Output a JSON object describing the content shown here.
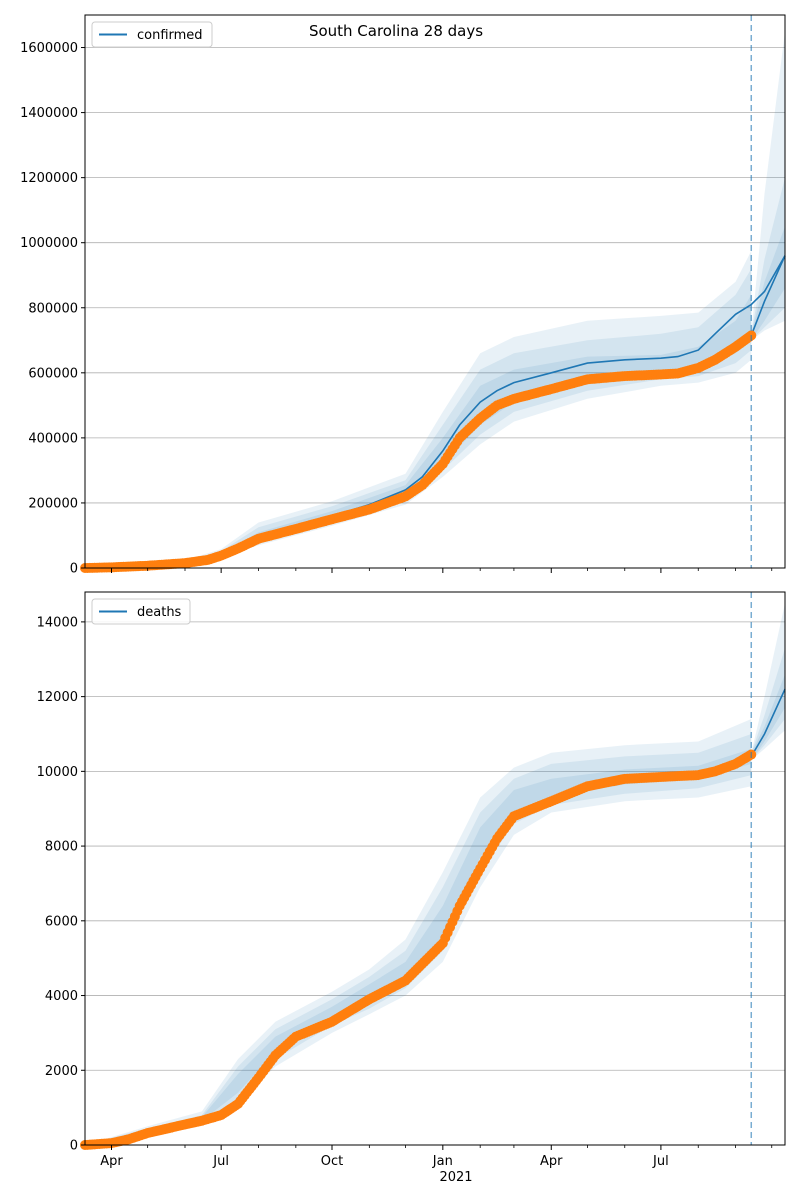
{
  "figure": {
    "title": "South Carolina 28 days"
  },
  "colors": {
    "model": "#1f77b4",
    "observed": "#ff7f0e",
    "band": "#1f77b4",
    "grid": "#b0b0b0",
    "forecast_line": "#1f77b4"
  },
  "x_axis": {
    "range": [
      "2020-03-10",
      "2021-10-12"
    ],
    "major_ticks": [
      {
        "date": "2020-04-01",
        "label": "Apr"
      },
      {
        "date": "2020-07-01",
        "label": "Jul"
      },
      {
        "date": "2020-10-01",
        "label": "Oct"
      },
      {
        "date": "2021-01-01",
        "label": "Jan"
      },
      {
        "date": "2021-04-01",
        "label": "Apr"
      },
      {
        "date": "2021-07-01",
        "label": "Jul"
      }
    ],
    "year_label": {
      "date": "2021-01-01",
      "label": "2021"
    },
    "minor_ticks": [
      "2020-05-01",
      "2020-06-01",
      "2020-08-01",
      "2020-09-01",
      "2020-11-01",
      "2020-12-01",
      "2021-02-01",
      "2021-03-01",
      "2021-05-01",
      "2021-06-01",
      "2021-08-01",
      "2021-09-01",
      "2021-10-01"
    ],
    "forecast_start": "2021-09-14"
  },
  "chart_data": [
    {
      "type": "line",
      "legend": "confirmed",
      "legend_position": "upper left",
      "grid_y": true,
      "ylim": [
        0,
        1700000
      ],
      "yticks": [
        0,
        200000,
        400000,
        600000,
        800000,
        1000000,
        1200000,
        1400000,
        1600000
      ],
      "model": {
        "x": [
          "2020-03-10",
          "2020-04-01",
          "2020-05-01",
          "2020-06-01",
          "2020-06-20",
          "2020-07-01",
          "2020-07-15",
          "2020-08-01",
          "2020-09-01",
          "2020-10-01",
          "2020-11-01",
          "2020-12-01",
          "2020-12-15",
          "2021-01-01",
          "2021-01-15",
          "2021-02-01",
          "2021-02-15",
          "2021-03-01",
          "2021-04-01",
          "2021-05-01",
          "2021-06-01",
          "2021-07-01",
          "2021-07-15",
          "2021-08-01",
          "2021-08-15",
          "2021-09-01",
          "2021-09-14",
          "2021-09-25",
          "2021-10-12"
        ],
        "y": [
          0,
          3000,
          8000,
          17000,
          30000,
          42000,
          65000,
          95000,
          125000,
          160000,
          195000,
          240000,
          280000,
          360000,
          440000,
          510000,
          545000,
          570000,
          600000,
          630000,
          640000,
          645000,
          650000,
          670000,
          720000,
          780000,
          810000,
          850000,
          960000
        ],
        "y_note": "model mean segment after forecast start continues from observed end",
        "forecast_y": {
          "x": [
            "2021-09-14",
            "2021-09-25",
            "2021-10-12"
          ],
          "y": [
            715000,
            820000,
            960000
          ]
        }
      },
      "bands": [
        {
          "x": [
            "2020-03-10",
            "2020-06-01",
            "2020-07-01",
            "2020-08-01",
            "2020-10-01",
            "2020-12-01",
            "2021-01-01",
            "2021-02-01",
            "2021-03-01",
            "2021-05-01",
            "2021-07-01",
            "2021-08-01",
            "2021-09-01",
            "2021-09-14"
          ],
          "lower": [
            0,
            15000,
            38000,
            85000,
            145000,
            215000,
            320000,
            440000,
            510000,
            570000,
            600000,
            610000,
            660000,
            700000
          ],
          "upper": [
            0,
            19000,
            46000,
            110000,
            175000,
            255000,
            400000,
            560000,
            610000,
            650000,
            655000,
            680000,
            760000,
            840000
          ]
        },
        {
          "x": [
            "2020-03-10",
            "2020-06-01",
            "2020-07-01",
            "2020-08-01",
            "2020-10-01",
            "2020-12-01",
            "2021-01-01",
            "2021-02-01",
            "2021-03-01",
            "2021-05-01",
            "2021-07-01",
            "2021-08-01",
            "2021-09-01",
            "2021-09-14"
          ],
          "lower": [
            0,
            14000,
            34000,
            78000,
            138000,
            205000,
            300000,
            410000,
            480000,
            545000,
            580000,
            590000,
            630000,
            670000
          ],
          "upper": [
            0,
            21000,
            52000,
            125000,
            190000,
            270000,
            440000,
            610000,
            660000,
            700000,
            720000,
            740000,
            840000,
            920000
          ]
        },
        {
          "x": [
            "2020-03-10",
            "2020-06-01",
            "2020-07-01",
            "2020-08-01",
            "2020-10-01",
            "2020-12-01",
            "2021-01-01",
            "2021-02-01",
            "2021-03-01",
            "2021-05-01",
            "2021-07-01",
            "2021-08-01",
            "2021-09-01",
            "2021-09-14"
          ],
          "lower": [
            0,
            12000,
            30000,
            70000,
            130000,
            195000,
            280000,
            380000,
            450000,
            520000,
            560000,
            570000,
            600000,
            640000
          ],
          "upper": [
            0,
            24000,
            58000,
            140000,
            205000,
            290000,
            480000,
            660000,
            710000,
            760000,
            775000,
            785000,
            880000,
            975000
          ]
        },
        {
          "x": [
            "2021-09-14",
            "2021-09-25",
            "2021-10-12"
          ],
          "lower": [
            700000,
            760000,
            860000
          ],
          "upper": [
            720000,
            880000,
            1050000
          ]
        },
        {
          "x": [
            "2021-09-14",
            "2021-09-25",
            "2021-10-12"
          ],
          "lower": [
            700000,
            740000,
            800000
          ],
          "upper": [
            720000,
            950000,
            1200000
          ]
        },
        {
          "x": [
            "2021-09-14",
            "2021-09-25",
            "2021-10-12"
          ],
          "lower": [
            700000,
            730000,
            760000
          ],
          "upper": [
            720000,
            1150000,
            1650000
          ]
        }
      ],
      "observed": {
        "x": [
          "2020-03-10",
          "2020-04-01",
          "2020-05-01",
          "2020-06-01",
          "2020-06-20",
          "2020-07-01",
          "2020-07-15",
          "2020-08-01",
          "2020-09-01",
          "2020-10-01",
          "2020-11-01",
          "2020-12-01",
          "2020-12-15",
          "2021-01-01",
          "2021-01-15",
          "2021-02-01",
          "2021-02-15",
          "2021-03-01",
          "2021-04-01",
          "2021-05-01",
          "2021-06-01",
          "2021-07-01",
          "2021-07-15",
          "2021-08-01",
          "2021-08-15",
          "2021-09-01",
          "2021-09-14"
        ],
        "y": [
          0,
          2000,
          7000,
          15000,
          25000,
          38000,
          60000,
          90000,
          120000,
          150000,
          180000,
          220000,
          255000,
          320000,
          400000,
          460000,
          500000,
          520000,
          550000,
          580000,
          590000,
          595000,
          598000,
          615000,
          640000,
          680000,
          715000
        ]
      }
    },
    {
      "type": "line",
      "legend": "deaths",
      "legend_position": "upper left",
      "grid_y": true,
      "ylim": [
        0,
        14800
      ],
      "yticks": [
        0,
        2000,
        4000,
        6000,
        8000,
        10000,
        12000,
        14000
      ],
      "model": {
        "x": [
          "2021-09-14",
          "2021-09-25",
          "2021-10-12"
        ],
        "y": [
          10400,
          11000,
          12200
        ]
      },
      "bands": [
        {
          "x": [
            "2020-03-10",
            "2020-05-01",
            "2020-06-15",
            "2020-07-15",
            "2020-08-15",
            "2020-10-01",
            "2020-11-01",
            "2020-12-01",
            "2021-01-01",
            "2021-02-01",
            "2021-03-01",
            "2021-04-01",
            "2021-06-01",
            "2021-08-01",
            "2021-09-14"
          ],
          "lower": [
            0,
            300,
            650,
            1400,
            2500,
            3400,
            3800,
            4400,
            5600,
            7700,
            8900,
            9300,
            9650,
            9800,
            10200
          ],
          "upper": [
            0,
            400,
            750,
            1900,
            2900,
            3700,
            4300,
            4900,
            6400,
            8500,
            9500,
            9800,
            10050,
            10150,
            10600
          ]
        },
        {
          "x": [
            "2020-03-10",
            "2020-05-01",
            "2020-06-15",
            "2020-07-15",
            "2020-08-15",
            "2020-10-01",
            "2020-11-01",
            "2020-12-01",
            "2021-01-01",
            "2021-02-01",
            "2021-03-01",
            "2021-04-01",
            "2021-06-01",
            "2021-08-01",
            "2021-09-14"
          ],
          "lower": [
            0,
            280,
            600,
            1200,
            2300,
            3200,
            3650,
            4200,
            5200,
            7300,
            8600,
            9100,
            9400,
            9550,
            9900
          ],
          "upper": [
            0,
            450,
            800,
            2100,
            3100,
            3900,
            4500,
            5200,
            6900,
            8900,
            9800,
            10200,
            10400,
            10500,
            11000
          ]
        },
        {
          "x": [
            "2020-03-10",
            "2020-05-01",
            "2020-06-15",
            "2020-07-15",
            "2020-08-15",
            "2020-10-01",
            "2020-11-01",
            "2020-12-01",
            "2021-01-01",
            "2021-02-01",
            "2021-03-01",
            "2021-04-01",
            "2021-06-01",
            "2021-08-01",
            "2021-09-14"
          ],
          "lower": [
            0,
            250,
            550,
            1100,
            2100,
            3000,
            3500,
            4000,
            4900,
            6900,
            8300,
            8900,
            9200,
            9300,
            9600
          ],
          "upper": [
            0,
            500,
            900,
            2300,
            3300,
            4100,
            4700,
            5500,
            7300,
            9300,
            10100,
            10500,
            10700,
            10800,
            11400
          ]
        },
        {
          "x": [
            "2021-09-14",
            "2021-09-25",
            "2021-10-12"
          ],
          "lower": [
            10300,
            10800,
            11700
          ],
          "upper": [
            10500,
            11200,
            12600
          ]
        },
        {
          "x": [
            "2021-09-14",
            "2021-09-25",
            "2021-10-12"
          ],
          "lower": [
            10300,
            10700,
            11400
          ],
          "upper": [
            10500,
            11500,
            13300
          ]
        },
        {
          "x": [
            "2021-09-14",
            "2021-09-25",
            "2021-10-12"
          ],
          "lower": [
            10300,
            10600,
            11100
          ],
          "upper": [
            10500,
            12000,
            14500
          ]
        }
      ],
      "observed": {
        "x": [
          "2020-03-10",
          "2020-04-01",
          "2020-04-15",
          "2020-05-01",
          "2020-06-01",
          "2020-06-15",
          "2020-07-01",
          "2020-07-15",
          "2020-08-01",
          "2020-08-15",
          "2020-09-01",
          "2020-10-01",
          "2020-11-01",
          "2020-12-01",
          "2021-01-01",
          "2021-01-15",
          "2021-02-01",
          "2021-02-15",
          "2021-03-01",
          "2021-04-01",
          "2021-05-01",
          "2021-06-01",
          "2021-07-01",
          "2021-08-01",
          "2021-08-15",
          "2021-09-01",
          "2021-09-14"
        ],
        "y": [
          0,
          50,
          150,
          320,
          550,
          650,
          800,
          1100,
          1800,
          2400,
          2900,
          3300,
          3900,
          4400,
          5400,
          6400,
          7400,
          8200,
          8800,
          9200,
          9600,
          9800,
          9850,
          9900,
          10000,
          10200,
          10450
        ]
      }
    }
  ]
}
